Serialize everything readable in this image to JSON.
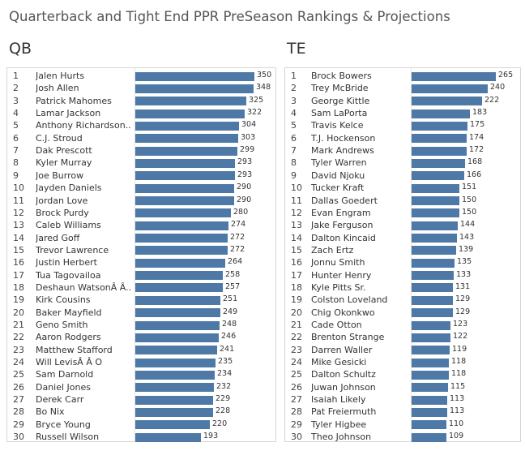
{
  "title": "Quarterback and Tight End PPR PreSeason Rankings & Projections",
  "chart_data": [
    {
      "type": "bar",
      "title": "QB",
      "orientation": "horizontal",
      "xlim": [
        0,
        350
      ],
      "ranks": [
        "1",
        "2",
        "3",
        "4",
        "5",
        "6",
        "7",
        "8",
        "9",
        "10",
        "11",
        "12",
        "13",
        "14",
        "15",
        "16",
        "17",
        "18",
        "19",
        "20",
        "21",
        "22",
        "23",
        "24",
        "25",
        "26",
        "27",
        "28",
        "29",
        "30"
      ],
      "categories": [
        "Jalen Hurts",
        "Josh Allen",
        "Patrick Mahomes",
        "Lamar Jackson",
        "Anthony Richardson..",
        "C.J. Stroud",
        "Dak Prescott",
        "Kyler Murray",
        "Joe Burrow",
        "Jayden Daniels",
        "Jordan Love",
        "Brock Purdy",
        "Caleb Williams",
        "Jared Goff",
        "Trevor Lawrence",
        "Justin Herbert",
        "Tua Tagovailoa",
        "Deshaun WatsonÂ Â..",
        "Kirk Cousins",
        "Baker Mayfield",
        "Geno Smith",
        "Aaron Rodgers",
        "Matthew Stafford",
        "Will LevisÂ Â O",
        "Sam Darnold",
        "Daniel Jones",
        "Derek Carr",
        "Bo Nix",
        "Bryce Young",
        "Russell Wilson"
      ],
      "values": [
        350,
        348,
        325,
        322,
        304,
        303,
        299,
        293,
        293,
        290,
        290,
        280,
        274,
        272,
        272,
        264,
        258,
        257,
        251,
        249,
        248,
        246,
        241,
        235,
        234,
        232,
        229,
        228,
        220,
        193
      ]
    },
    {
      "type": "bar",
      "title": "TE",
      "orientation": "horizontal",
      "xlim": [
        0,
        265
      ],
      "ranks": [
        "1",
        "2",
        "3",
        "4",
        "5",
        "6",
        "7",
        "8",
        "9",
        "10",
        "11",
        "12",
        "13",
        "14",
        "15",
        "16",
        "17",
        "18",
        "19",
        "20",
        "21",
        "22",
        "23",
        "24",
        "25",
        "26",
        "27",
        "28",
        "29",
        "30"
      ],
      "categories": [
        "Brock Bowers",
        "Trey McBride",
        "George Kittle",
        "Sam LaPorta",
        "Travis Kelce",
        "T.J. Hockenson",
        "Mark Andrews",
        "Tyler Warren",
        "David Njoku",
        "Tucker Kraft",
        "Dallas Goedert",
        "Evan Engram",
        "Jake Ferguson",
        "Dalton Kincaid",
        "Zach Ertz",
        "Jonnu Smith",
        "Hunter Henry",
        "Kyle Pitts Sr.",
        "Colston Loveland",
        "Chig Okonkwo",
        "Cade Otton",
        "Brenton Strange",
        "Darren Waller",
        "Mike Gesicki",
        "Dalton Schultz",
        "Juwan Johnson",
        "Isaiah Likely",
        "Pat Freiermuth",
        "Tyler Higbee",
        "Theo Johnson"
      ],
      "values": [
        265,
        240,
        222,
        183,
        175,
        174,
        172,
        168,
        166,
        151,
        150,
        150,
        144,
        143,
        139,
        135,
        133,
        131,
        129,
        129,
        123,
        122,
        119,
        118,
        118,
        115,
        113,
        113,
        110,
        109
      ]
    }
  ]
}
